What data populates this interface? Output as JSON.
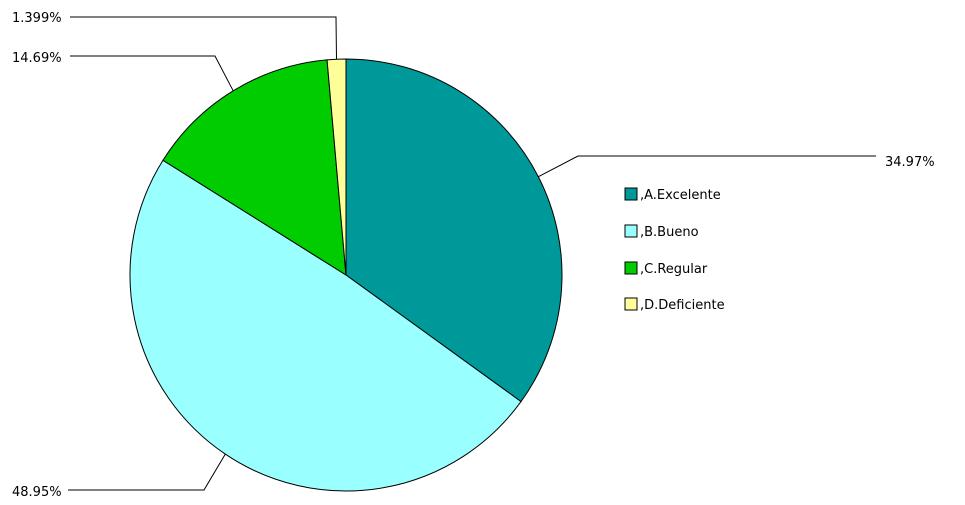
{
  "chart_data": {
    "type": "pie",
    "title": "",
    "slices": [
      {
        "label": ",A.Excelente",
        "value": 34.97,
        "pct_label": "34.97%",
        "color": "#009999"
      },
      {
        "label": ",B.Bueno",
        "value": 48.95,
        "pct_label": "48.95%",
        "color": "#99FFFF"
      },
      {
        "label": ",C.Regular",
        "value": 14.69,
        "pct_label": "14.69%",
        "color": "#00CC00"
      },
      {
        "label": ",D.Deficiente",
        "value": 1.399,
        "pct_label": "1.399%",
        "color": "#FFFF99"
      }
    ],
    "legend_position": "right"
  }
}
